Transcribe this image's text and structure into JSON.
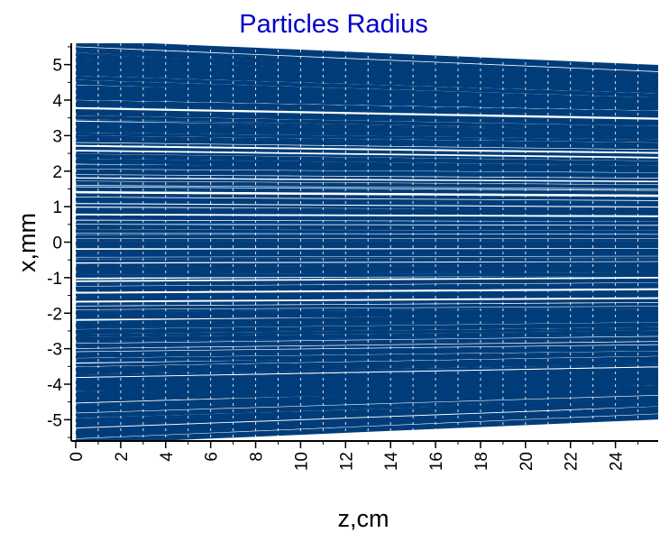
{
  "chart_data": {
    "type": "line",
    "title": "Particles Radius",
    "xlabel": "z,cm",
    "ylabel": "x,mm",
    "xlim": [
      -0.2,
      25.9
    ],
    "ylim": [
      -5.6,
      5.6
    ],
    "x_ticks": [
      0,
      2,
      4,
      6,
      8,
      10,
      12,
      14,
      16,
      18,
      20,
      22,
      24
    ],
    "x_tick_labels": [
      "0",
      "2",
      "4",
      "6",
      "8",
      "10",
      "12",
      "14",
      "16",
      "18",
      "20",
      "22",
      "24"
    ],
    "y_ticks": [
      5,
      4,
      3,
      2,
      1,
      0,
      -1,
      -2,
      -3,
      -4,
      -5
    ],
    "y_tick_labels": [
      "5",
      "4",
      "3",
      "2",
      "1",
      "0",
      "-1",
      "-2",
      "-3",
      "-4",
      "-5"
    ],
    "grid": true,
    "legend": "none",
    "series": [
      {
        "values": [
          [
            0,
            5.5
          ],
          [
            25.9,
            4.8
          ]
        ]
      },
      {
        "values": [
          [
            0,
            5.2
          ],
          [
            25.9,
            4.6
          ]
        ]
      },
      {
        "values": [
          [
            0,
            4.9
          ],
          [
            25.9,
            4.4
          ]
        ]
      },
      {
        "values": [
          [
            0,
            4.6
          ],
          [
            25.9,
            4.1
          ]
        ]
      },
      {
        "values": [
          [
            0,
            4.3
          ],
          [
            25.9,
            3.9
          ]
        ]
      },
      {
        "values": [
          [
            0,
            4.0
          ],
          [
            25.9,
            3.7
          ]
        ]
      },
      {
        "values": [
          [
            0,
            3.6
          ],
          [
            25.9,
            3.3
          ]
        ]
      },
      {
        "values": [
          [
            0,
            3.2
          ],
          [
            25.9,
            3.0
          ]
        ]
      },
      {
        "values": [
          [
            0,
            2.8
          ],
          [
            25.9,
            2.6
          ]
        ]
      },
      {
        "values": [
          [
            0,
            2.4
          ],
          [
            25.9,
            2.2
          ]
        ]
      },
      {
        "values": [
          [
            0,
            2.0
          ],
          [
            25.9,
            1.9
          ]
        ]
      },
      {
        "values": [
          [
            0,
            1.6
          ],
          [
            25.9,
            1.5
          ]
        ]
      },
      {
        "values": [
          [
            0,
            1.2
          ],
          [
            25.9,
            1.1
          ]
        ]
      },
      {
        "values": [
          [
            0,
            0.8
          ],
          [
            25.9,
            0.75
          ]
        ]
      },
      {
        "values": [
          [
            0,
            0.4
          ],
          [
            25.9,
            0.37
          ]
        ]
      },
      {
        "values": [
          [
            0,
            0.0
          ],
          [
            25.9,
            0.0
          ]
        ]
      },
      {
        "values": [
          [
            0,
            -0.4
          ],
          [
            25.9,
            -0.37
          ]
        ]
      },
      {
        "values": [
          [
            0,
            -0.8
          ],
          [
            25.9,
            -0.75
          ]
        ]
      },
      {
        "values": [
          [
            0,
            -1.2
          ],
          [
            25.9,
            -1.1
          ]
        ]
      },
      {
        "values": [
          [
            0,
            -1.6
          ],
          [
            25.9,
            -1.5
          ]
        ]
      },
      {
        "values": [
          [
            0,
            -2.0
          ],
          [
            25.9,
            -1.9
          ]
        ]
      },
      {
        "values": [
          [
            0,
            -2.4
          ],
          [
            25.9,
            -2.2
          ]
        ]
      },
      {
        "values": [
          [
            0,
            -2.8
          ],
          [
            25.9,
            -2.6
          ]
        ]
      },
      {
        "values": [
          [
            0,
            -3.2
          ],
          [
            25.9,
            -3.0
          ]
        ]
      },
      {
        "values": [
          [
            0,
            -3.6
          ],
          [
            25.9,
            -3.3
          ]
        ]
      },
      {
        "values": [
          [
            0,
            -4.0
          ],
          [
            25.9,
            -3.7
          ]
        ]
      },
      {
        "values": [
          [
            0,
            -4.3
          ],
          [
            25.9,
            -3.9
          ]
        ]
      },
      {
        "values": [
          [
            0,
            -4.6
          ],
          [
            25.9,
            -4.1
          ]
        ]
      },
      {
        "values": [
          [
            0,
            -4.9
          ],
          [
            25.9,
            -4.4
          ]
        ]
      },
      {
        "values": [
          [
            0,
            -5.2
          ],
          [
            25.9,
            -4.6
          ]
        ]
      },
      {
        "values": [
          [
            0,
            -5.5
          ],
          [
            25.9,
            -4.8
          ]
        ]
      }
    ],
    "colors": {
      "title": "#0000cc",
      "lines": "#003d7a",
      "axis": "#000000",
      "grid": "#ffffff",
      "background": "#ffffff"
    }
  }
}
